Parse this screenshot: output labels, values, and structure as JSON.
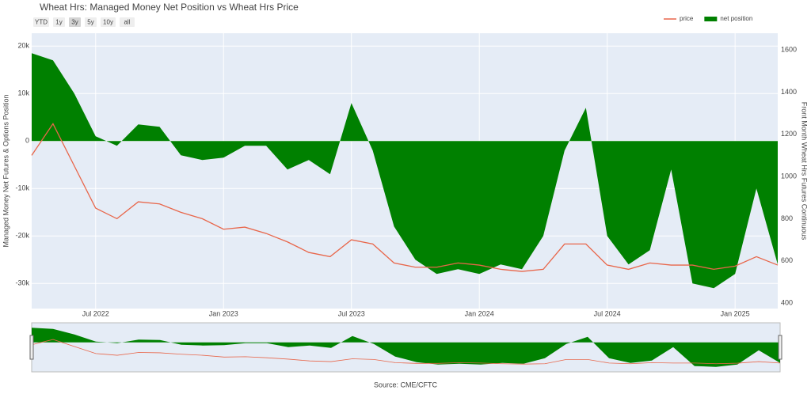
{
  "chart_data": {
    "type": "line",
    "title": "Wheat Hrs: Managed Money Net Position vs Wheat Hrs Price",
    "range_buttons": [
      "YTD",
      "1y",
      "3y",
      "5y",
      "10y",
      "all"
    ],
    "x": [
      "2022-04",
      "2022-05",
      "2022-06",
      "2022-07",
      "2022-08",
      "2022-09",
      "2022-10",
      "2022-11",
      "2022-12",
      "2023-01",
      "2023-02",
      "2023-03",
      "2023-04",
      "2023-05",
      "2023-06",
      "2023-07",
      "2023-08",
      "2023-09",
      "2023-10",
      "2023-11",
      "2023-12",
      "2024-01",
      "2024-02",
      "2024-03",
      "2024-04",
      "2024-05",
      "2024-06",
      "2024-07",
      "2024-08",
      "2024-09",
      "2024-10",
      "2024-11",
      "2024-12",
      "2025-01",
      "2025-02",
      "2025-03"
    ],
    "series": [
      {
        "name": "price",
        "type": "line",
        "axis": "y2",
        "color": "#e8664a",
        "values": [
          1100,
          1250,
          1050,
          850,
          800,
          880,
          870,
          830,
          800,
          750,
          760,
          730,
          690,
          640,
          620,
          700,
          680,
          590,
          570,
          570,
          590,
          580,
          560,
          550,
          560,
          680,
          680,
          580,
          560,
          590,
          580,
          580,
          560,
          575,
          620,
          580
        ]
      },
      {
        "name": "net position",
        "type": "area",
        "color": "#008000",
        "values": [
          18500,
          17000,
          10000,
          1000,
          -1000,
          3500,
          3000,
          -3000,
          -4000,
          -3500,
          -1000,
          -1000,
          -6000,
          -4000,
          -7000,
          8000,
          -2000,
          -18000,
          -25000,
          -28000,
          -27000,
          -28000,
          -26000,
          -27000,
          -20000,
          -2000,
          7000,
          -20000,
          -26000,
          -23000,
          -6000,
          -30000,
          -31000,
          -28000,
          -10000,
          -26000
        ]
      }
    ],
    "xlim": [
      "2022-04",
      "2025-03"
    ],
    "xticks": [
      {
        "value": "2022-07",
        "label": "Jul 2022"
      },
      {
        "value": "2023-01",
        "label": "Jan 2023"
      },
      {
        "value": "2023-07",
        "label": "Jul 2023"
      },
      {
        "value": "2024-01",
        "label": "Jan 2024"
      },
      {
        "value": "2024-07",
        "label": "Jul 2024"
      },
      {
        "value": "2025-01",
        "label": "Jan 2025"
      }
    ],
    "ylim": [
      -35300,
      22700
    ],
    "yticks": [
      {
        "value": -30000,
        "label": "-30k"
      },
      {
        "value": -20000,
        "label": "-20k"
      },
      {
        "value": -10000,
        "label": "-10k"
      },
      0,
      {
        "value": 10000,
        "label": "10k"
      },
      {
        "value": 20000,
        "label": "20k"
      }
    ],
    "y2lim": [
      374,
      1679
    ],
    "y2ticks": [
      400,
      600,
      800,
      1000,
      1200,
      1400,
      1600
    ],
    "ylabel": "Managed Money Net Futures & Options Position",
    "y2label": "Front Month Wheat Hrs Futures Continuous",
    "source": "Source: CME/CFTC",
    "grid": true,
    "legend": "top-right",
    "rangeslider": true
  }
}
